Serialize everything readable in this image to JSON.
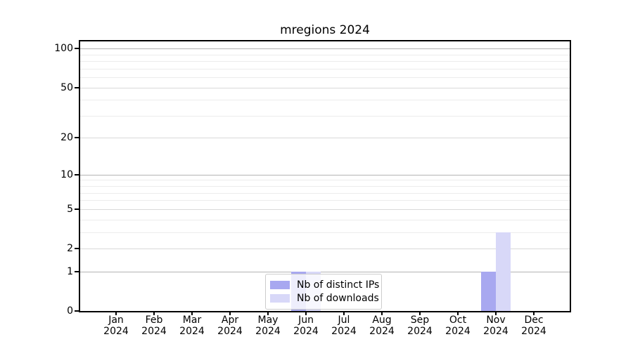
{
  "title": "mregions 2024",
  "chart_data": {
    "type": "bar",
    "title": "mregions 2024",
    "categories": [
      "Jan",
      "Feb",
      "Mar",
      "Apr",
      "May",
      "Jun",
      "Jul",
      "Aug",
      "Sep",
      "Oct",
      "Nov",
      "Dec"
    ],
    "year": "2024",
    "series": [
      {
        "name": "Nb of distinct IPs",
        "color": "#a8a8f0",
        "values": [
          0,
          0,
          0,
          0,
          0,
          1,
          0,
          0,
          0,
          0,
          1,
          0
        ]
      },
      {
        "name": "Nb of downloads",
        "color": "#d8d8f8",
        "values": [
          0,
          0,
          0,
          0,
          0,
          1,
          0,
          0,
          0,
          0,
          3,
          0
        ]
      }
    ],
    "y_ticks": [
      0,
      1,
      2,
      5,
      10,
      20,
      50,
      100
    ],
    "ylim": [
      0,
      115
    ],
    "scale": "log1p",
    "grid": {
      "decade_lines": [
        1,
        10,
        100
      ],
      "submajor_lines": [
        2,
        5,
        20,
        50
      ],
      "minor_lines": [
        3,
        4,
        6,
        7,
        8,
        9,
        30,
        40,
        60,
        70,
        80,
        90
      ],
      "decade_color": "#b3b3b3",
      "submajor_color": "#d9d9d9",
      "minor_color": "#ececec"
    },
    "legend": {
      "position": "bottom-center",
      "entries": [
        "Nb of distinct IPs",
        "Nb of downloads"
      ]
    },
    "axis_color": "#000000",
    "background": "#ffffff"
  }
}
